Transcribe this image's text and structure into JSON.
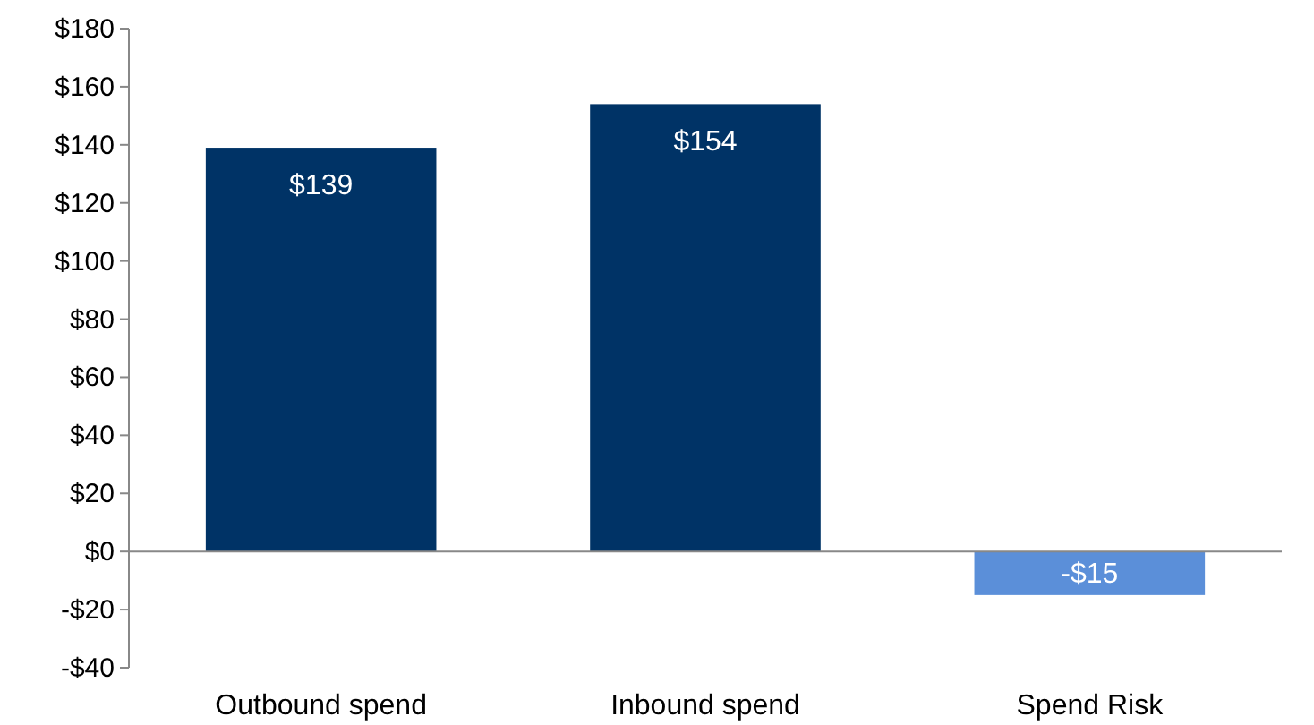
{
  "chart_data": {
    "type": "bar",
    "categories": [
      "Outbound spend",
      "Inbound spend",
      "Spend Risk"
    ],
    "values": [
      139,
      154,
      -15
    ],
    "colors": [
      "#003366",
      "#003366",
      "#5b8fd9"
    ],
    "value_labels": [
      "$139",
      "$154",
      "-$15"
    ],
    "ylim": [
      -40,
      180
    ],
    "yticks": [
      {
        "value": -40,
        "label": "-$40"
      },
      {
        "value": -20,
        "label": "-$20"
      },
      {
        "value": 0,
        "label": "$0"
      },
      {
        "value": 20,
        "label": "$20"
      },
      {
        "value": 40,
        "label": "$40"
      },
      {
        "value": 60,
        "label": "$60"
      },
      {
        "value": 80,
        "label": "$80"
      },
      {
        "value": 100,
        "label": "$100"
      },
      {
        "value": 120,
        "label": "$120"
      },
      {
        "value": 140,
        "label": "$140"
      },
      {
        "value": 160,
        "label": "$160"
      },
      {
        "value": 180,
        "label": "$180"
      }
    ]
  }
}
